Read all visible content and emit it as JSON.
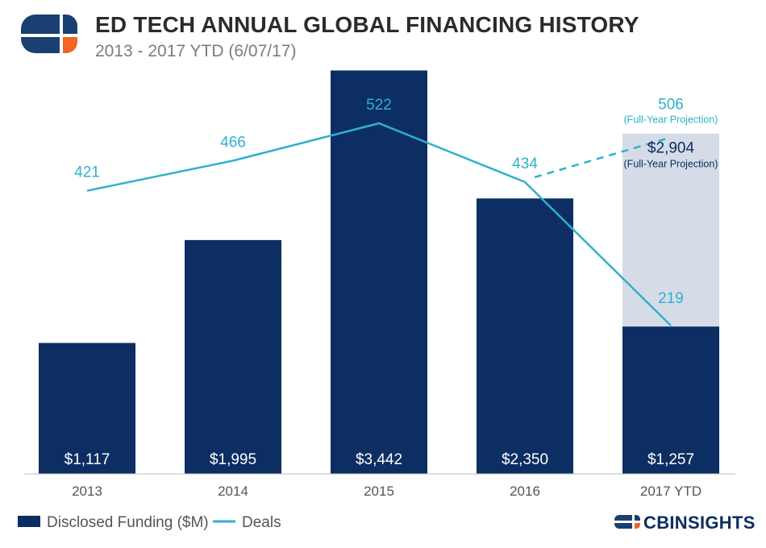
{
  "header": {
    "title": "ED TECH ANNUAL GLOBAL FINANCING HISTORY",
    "subtitle": "2013 - 2017 YTD (6/07/17)"
  },
  "brand": {
    "name": "CBINSIGHTS",
    "logo_icon": "cb-logo-icon",
    "colors": {
      "navy": "#1b3f73",
      "orange": "#f26522"
    }
  },
  "colors": {
    "bar": "#0d2e63",
    "projection_bar": "#d6dce7",
    "line": "#2fb0cf",
    "axis": "#bbbbbb"
  },
  "chart_data": {
    "type": "bar",
    "title": "ED TECH ANNUAL GLOBAL FINANCING HISTORY",
    "subtitle": "2013 - 2017 YTD (6/07/17)",
    "categories": [
      "2013",
      "2014",
      "2015",
      "2016",
      "2017 YTD"
    ],
    "series": [
      {
        "name": "Disclosed Funding ($M)",
        "type": "bar",
        "values": [
          1117,
          1995,
          3442,
          2350,
          1257
        ],
        "labels": [
          "$1,117",
          "$1,995",
          "$3,442",
          "$2,350",
          "$1,257"
        ]
      },
      {
        "name": "Deals",
        "type": "line",
        "values": [
          421,
          466,
          522,
          434,
          219
        ],
        "labels": [
          "421",
          "466",
          "522",
          "434",
          "219"
        ]
      }
    ],
    "projections": {
      "funding": {
        "category": "2017 YTD",
        "value": 2904,
        "label": "$2,904",
        "note": "(Full-Year Projection)"
      },
      "deals": {
        "category": "2017 YTD",
        "value": 506,
        "label": "506",
        "note": "(Full-Year Projection)"
      }
    },
    "legend": [
      "Disclosed Funding ($M)",
      "Deals"
    ],
    "legend_position": "bottom-left",
    "xlabel": "",
    "ylabel": "",
    "funding_ylim": [
      0,
      3500
    ],
    "deals_ylim": [
      0,
      700
    ],
    "grid": false
  }
}
